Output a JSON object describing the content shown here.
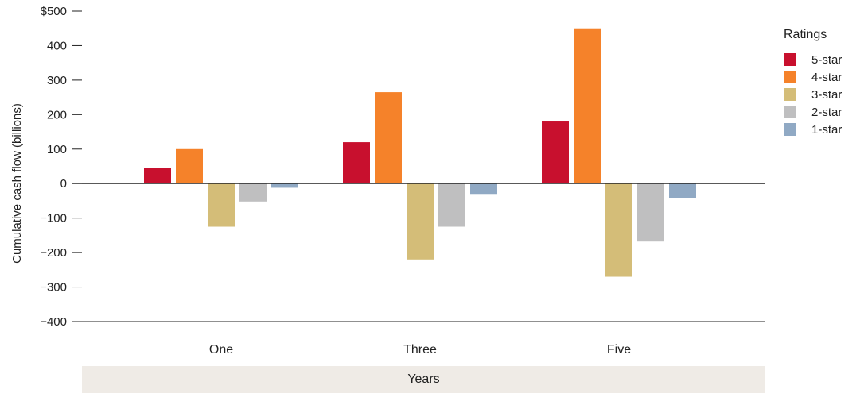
{
  "chart_data": {
    "type": "bar",
    "ylabel": "Cumulative cash flow (billions)",
    "xlabel": "Years",
    "categories": [
      "One",
      "Three",
      "Five"
    ],
    "ylim": [
      -400,
      500
    ],
    "yticks": [
      500,
      400,
      300,
      200,
      100,
      0,
      -100,
      -200,
      -300,
      -400
    ],
    "ytick_labels": [
      "$500",
      "400",
      "300",
      "200",
      "100",
      "0",
      "−100",
      "−200",
      "−300",
      "−400"
    ],
    "legend_title": "Ratings",
    "legend_position": "right",
    "grid": false,
    "series": [
      {
        "name": "5-star",
        "color": "#c8102e",
        "values": [
          45,
          120,
          180
        ]
      },
      {
        "name": "4-star",
        "color": "#f5822a",
        "values": [
          100,
          265,
          450
        ]
      },
      {
        "name": "3-star",
        "color": "#d4bd78",
        "values": [
          -125,
          -220,
          -270
        ]
      },
      {
        "name": "2-star",
        "color": "#bfbfc0",
        "values": [
          -52,
          -125,
          -168
        ]
      },
      {
        "name": "1-star",
        "color": "#90a9c4",
        "values": [
          -12,
          -30,
          -42
        ]
      }
    ]
  }
}
